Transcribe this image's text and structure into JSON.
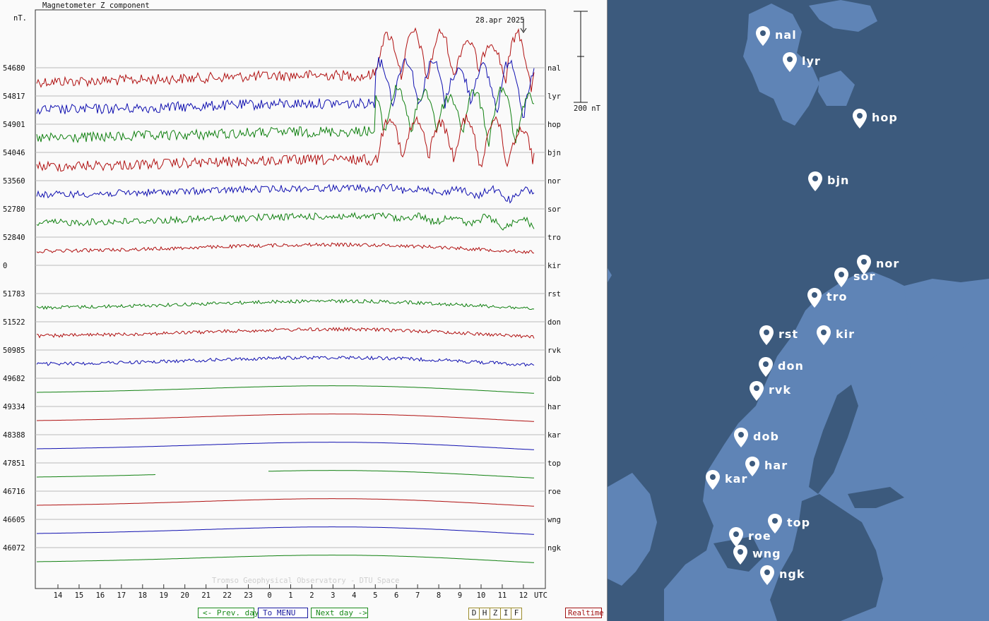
{
  "chart_data": {
    "type": "line",
    "title": "Magnetometer Z component",
    "date_label": "28.apr 2025",
    "y_unit": "nT.",
    "scale_label": "200 nT",
    "x_unit_label": "UTC",
    "x_ticks": [
      "14",
      "15",
      "16",
      "17",
      "18",
      "19",
      "20",
      "21",
      "22",
      "23",
      "0",
      "1",
      "2",
      "3",
      "4",
      "5",
      "6",
      "7",
      "8",
      "9",
      "10",
      "11",
      "12"
    ],
    "watermark": "Tromso Geophysical Observatory - DTU Space",
    "series": [
      {
        "name": "nal",
        "baseline": "54680",
        "color": "#b01010",
        "activity": 3
      },
      {
        "name": "lyr",
        "baseline": "54817",
        "color": "#1010b0",
        "activity": 3
      },
      {
        "name": "hop",
        "baseline": "54901",
        "color": "#108010",
        "activity": 3
      },
      {
        "name": "bjn",
        "baseline": "54046",
        "color": "#b01010",
        "activity": 3
      },
      {
        "name": "nor",
        "baseline": "53560",
        "color": "#1010b0",
        "activity": 2
      },
      {
        "name": "sor",
        "baseline": "52780",
        "color": "#108010",
        "activity": 2
      },
      {
        "name": "tro",
        "baseline": "52840",
        "color": "#b01010",
        "activity": 1
      },
      {
        "name": "kir",
        "baseline": "0",
        "color": "#888888",
        "activity": 0
      },
      {
        "name": "rst",
        "baseline": "51783",
        "color": "#108010",
        "activity": 1
      },
      {
        "name": "don",
        "baseline": "51522",
        "color": "#b01010",
        "activity": 1
      },
      {
        "name": "rvk",
        "baseline": "50985",
        "color": "#1010b0",
        "activity": 1
      },
      {
        "name": "dob",
        "baseline": "49682",
        "color": "#108010",
        "activity": 0
      },
      {
        "name": "har",
        "baseline": "49334",
        "color": "#b01010",
        "activity": 0
      },
      {
        "name": "kar",
        "baseline": "48388",
        "color": "#1010b0",
        "activity": 0
      },
      {
        "name": "top",
        "baseline": "47851",
        "color": "#108010",
        "activity": 0
      },
      {
        "name": "roe",
        "baseline": "46716",
        "color": "#b01010",
        "activity": 0
      },
      {
        "name": "wng",
        "baseline": "46605",
        "color": "#1010b0",
        "activity": 0
      },
      {
        "name": "ngk",
        "baseline": "46072",
        "color": "#108010",
        "activity": 0
      }
    ]
  },
  "nav": {
    "prev": "<- Prev. day",
    "menu": "To MENU",
    "next": "Next day ->",
    "components": [
      "D",
      "H",
      "Z",
      "I",
      "F"
    ],
    "realtime": "Realtime"
  },
  "map": {
    "land_color": "#5f84b6",
    "sea_color": "#3c5a7d",
    "stations": [
      "nal",
      "lyr",
      "hop",
      "bjn",
      "nor",
      "sor",
      "tro",
      "kir",
      "rst",
      "don",
      "rvk",
      "dob",
      "har",
      "kar",
      "top",
      "roe",
      "wng",
      "ngk"
    ]
  }
}
